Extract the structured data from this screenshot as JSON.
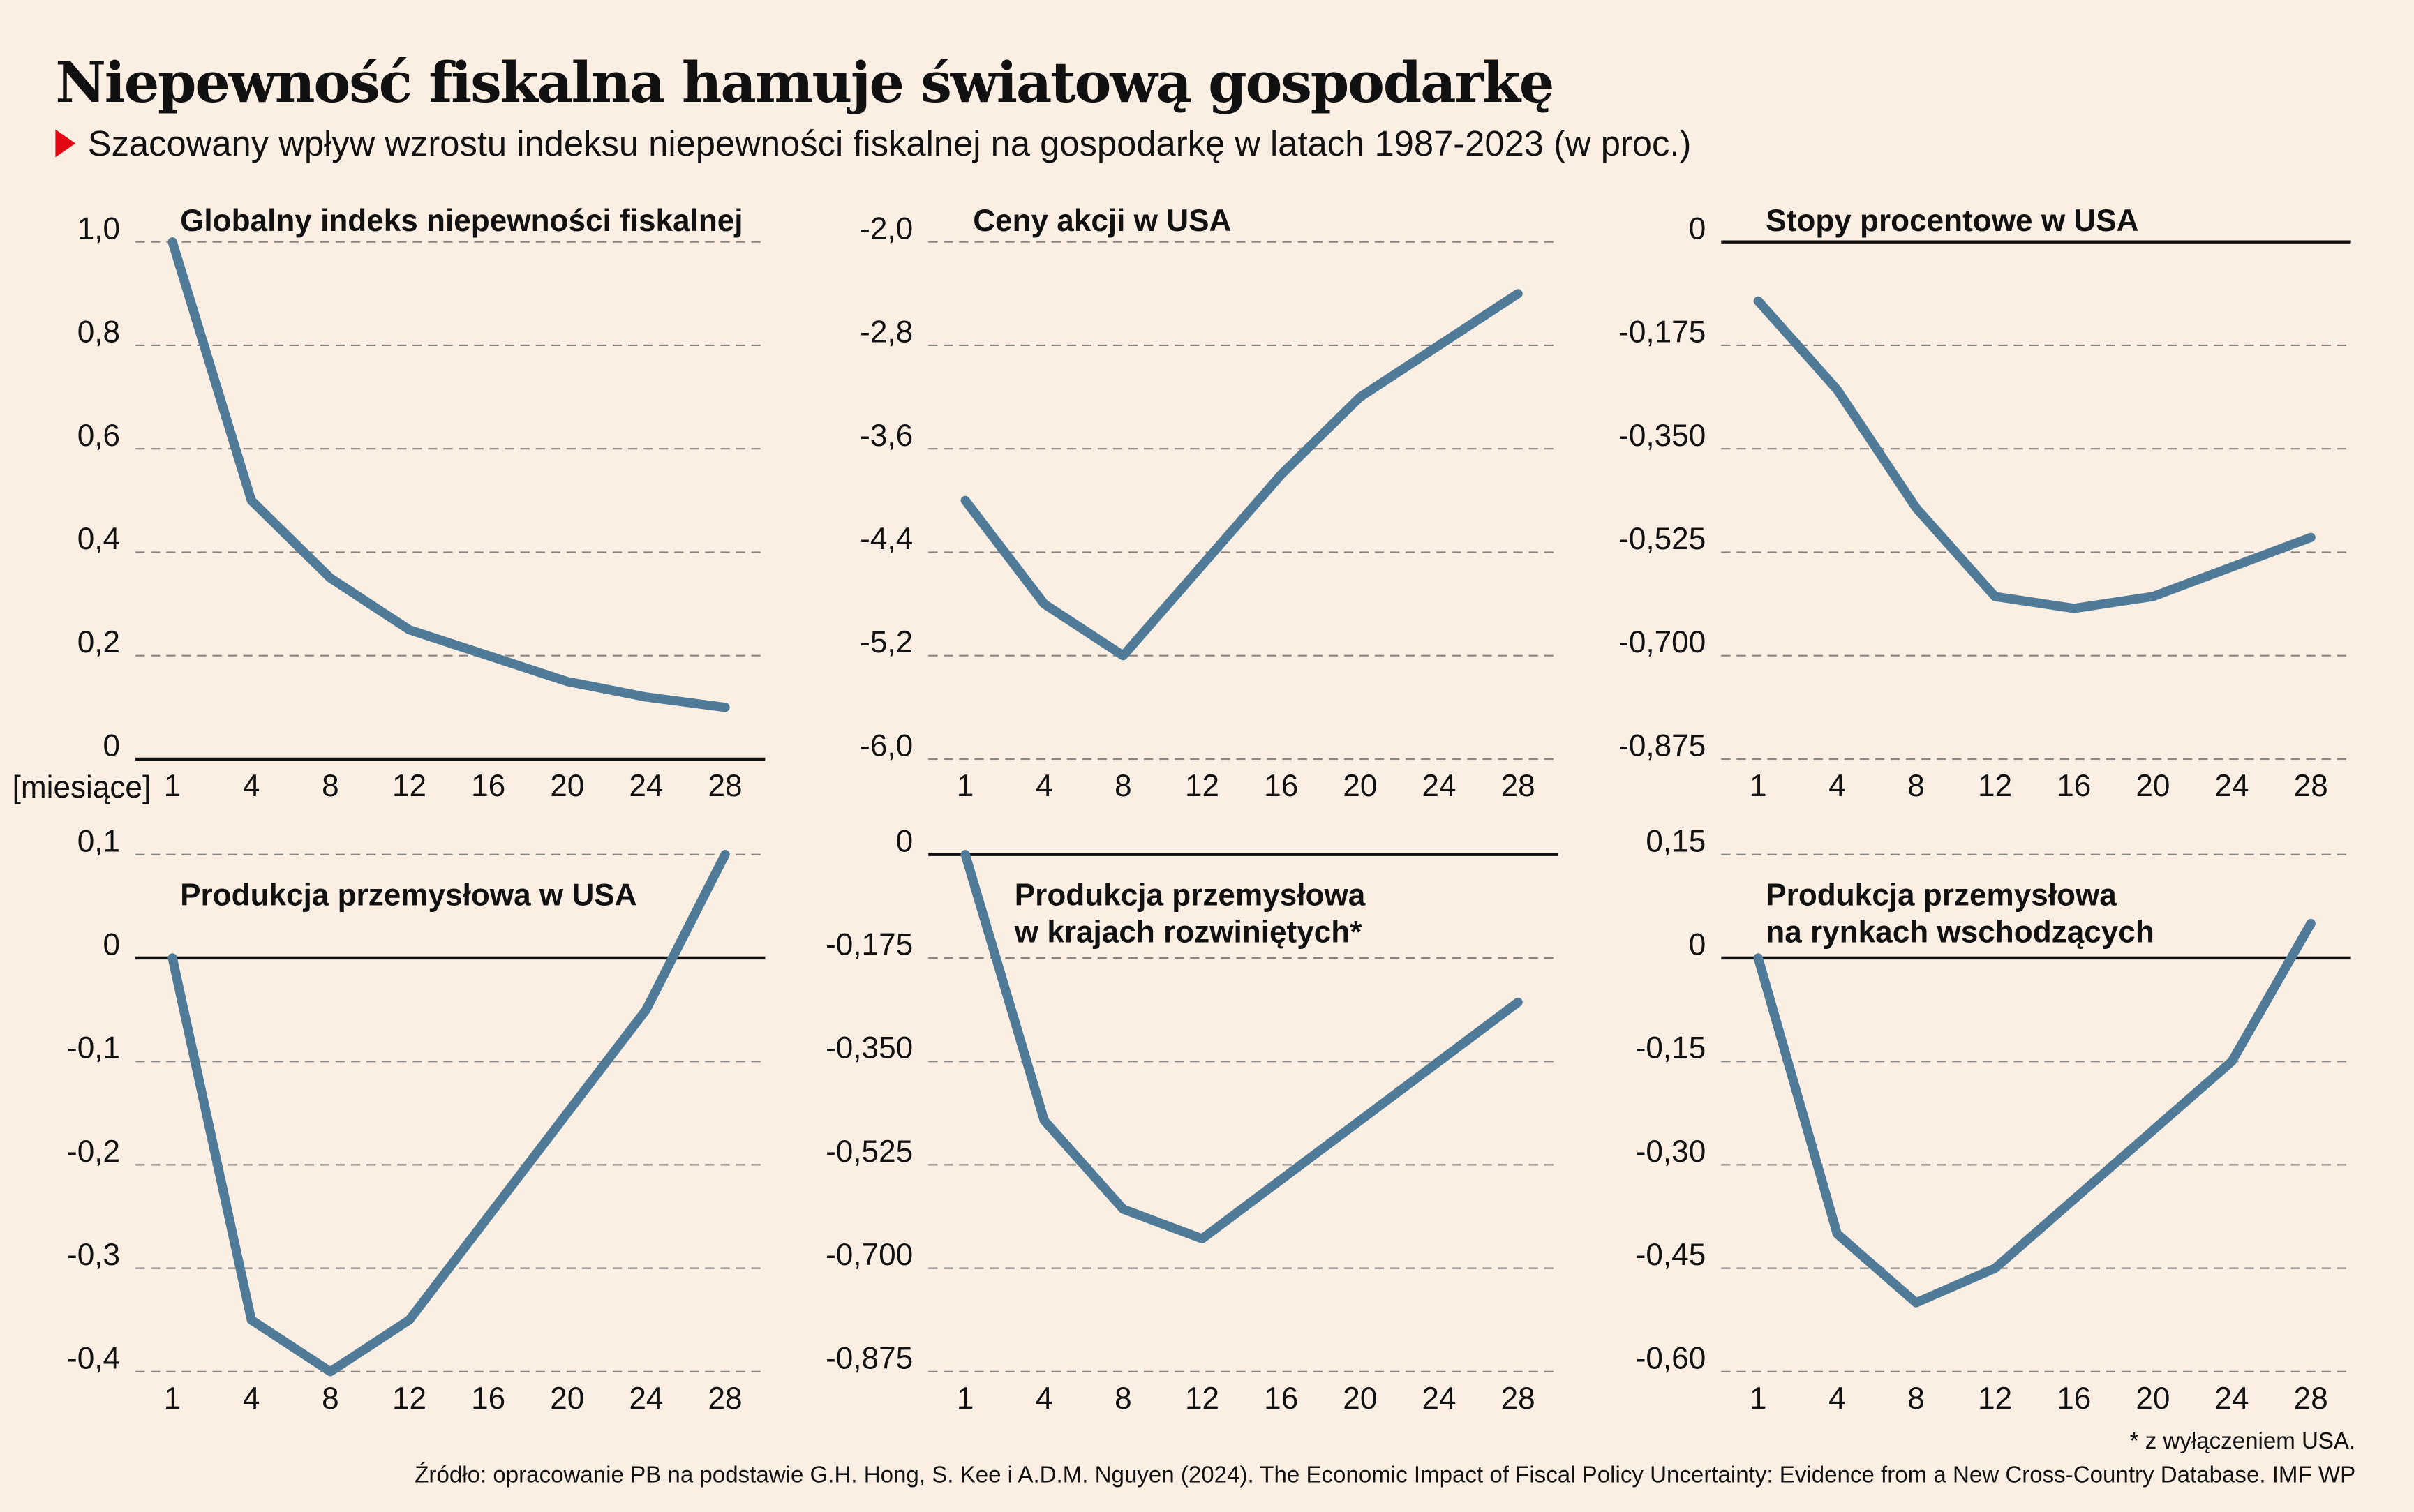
{
  "header": {
    "title": "Niepewność fiskalna hamuje światową gospodarkę",
    "subtitle": "Szacowany wpływ wzrostu indeksu niepewności fiskalnej na gospodarkę w latach 1987-2023 (w proc.)",
    "marker_color": "#e30613"
  },
  "x_unit_label": "[miesiące]",
  "line_color": "#4f7b99",
  "chart_data": [
    {
      "type": "line",
      "title": [
        "Globalny indeks niepewności fiskalnej"
      ],
      "categories": [
        "1",
        "4",
        "8",
        "12",
        "16",
        "20",
        "24",
        "28"
      ],
      "values": [
        1.0,
        0.5,
        0.35,
        0.25,
        0.2,
        0.15,
        0.12,
        0.1
      ],
      "ylim": [
        0,
        1.0
      ],
      "yticks": [
        1.0,
        0.8,
        0.6,
        0.4,
        0.2,
        0
      ],
      "ytick_labels": [
        "1,0",
        "0,8",
        "0,6",
        "0,4",
        "0,2",
        "0"
      ],
      "grid": true
    },
    {
      "type": "line",
      "title": [
        "Ceny akcji w USA"
      ],
      "categories": [
        "1",
        "4",
        "8",
        "12",
        "16",
        "20",
        "24",
        "28"
      ],
      "values": [
        -4.0,
        -4.8,
        -5.2,
        -4.5,
        -3.8,
        -3.2,
        -2.8,
        -2.4
      ],
      "ylim": [
        -6.0,
        -2.0
      ],
      "yticks": [
        -2.0,
        -2.8,
        -3.6,
        -4.4,
        -5.2,
        -6.0
      ],
      "ytick_labels": [
        "-2,0",
        "-2,8",
        "-3,6",
        "-4,4",
        "-5,2",
        "-6,0"
      ],
      "grid": true
    },
    {
      "type": "line",
      "title": [
        "Stopy procentowe w USA"
      ],
      "categories": [
        "1",
        "4",
        "8",
        "12",
        "16",
        "20",
        "24",
        "28"
      ],
      "values": [
        -0.1,
        -0.25,
        -0.45,
        -0.6,
        -0.62,
        -0.6,
        -0.55,
        -0.5
      ],
      "ylim": [
        -0.875,
        0
      ],
      "yticks": [
        0,
        -0.175,
        -0.35,
        -0.525,
        -0.7,
        -0.875
      ],
      "ytick_labels": [
        "0",
        "-0,175",
        "-0,350",
        "-0,525",
        "-0,700",
        "-0,875"
      ],
      "grid": true
    },
    {
      "type": "line",
      "title": [
        "Produkcja przemysłowa w USA"
      ],
      "categories": [
        "1",
        "4",
        "8",
        "12",
        "16",
        "20",
        "24",
        "28"
      ],
      "values": [
        0,
        -0.35,
        -0.4,
        -0.35,
        -0.25,
        -0.15,
        -0.05,
        0.1
      ],
      "ylim": [
        -0.4,
        0.1
      ],
      "yticks": [
        0.1,
        0,
        -0.1,
        -0.2,
        -0.3,
        -0.4
      ],
      "ytick_labels": [
        "0,1",
        "0",
        "-0,1",
        "-0,2",
        "-0,3",
        "-0,4"
      ],
      "grid": true
    },
    {
      "type": "line",
      "title": [
        "Produkcja przemysłowa",
        "w krajach rozwiniętych*"
      ],
      "categories": [
        "1",
        "4",
        "8",
        "12",
        "16",
        "20",
        "24",
        "28"
      ],
      "values": [
        0,
        -0.45,
        -0.6,
        -0.65,
        -0.55,
        -0.45,
        -0.35,
        -0.25
      ],
      "ylim": [
        -0.875,
        0
      ],
      "yticks": [
        0,
        -0.175,
        -0.35,
        -0.525,
        -0.7,
        -0.875
      ],
      "ytick_labels": [
        "0",
        "-0,175",
        "-0,350",
        "-0,525",
        "-0,700",
        "-0,875"
      ],
      "grid": true
    },
    {
      "type": "line",
      "title": [
        "Produkcja przemysłowa",
        "na rynkach wschodzących"
      ],
      "categories": [
        "1",
        "4",
        "8",
        "12",
        "16",
        "20",
        "24",
        "28"
      ],
      "values": [
        0,
        -0.4,
        -0.5,
        -0.45,
        -0.35,
        -0.25,
        -0.15,
        0.05
      ],
      "ylim": [
        -0.6,
        0.15
      ],
      "yticks": [
        0.15,
        0,
        -0.15,
        -0.3,
        -0.45,
        -0.6
      ],
      "ytick_labels": [
        "0,15",
        "0",
        "-0,15",
        "-0,30",
        "-0,45",
        "-0,60"
      ],
      "grid": true
    }
  ],
  "footnote": "* z wyłączeniem USA.",
  "source": "Źródło: opracowanie PB na podstawie G.H. Hong, S. Kee i A.D.M. Nguyen (2024). The Economic Impact of Fiscal Policy Uncertainty: Evidence from a New Cross-Country Database. IMF WP"
}
